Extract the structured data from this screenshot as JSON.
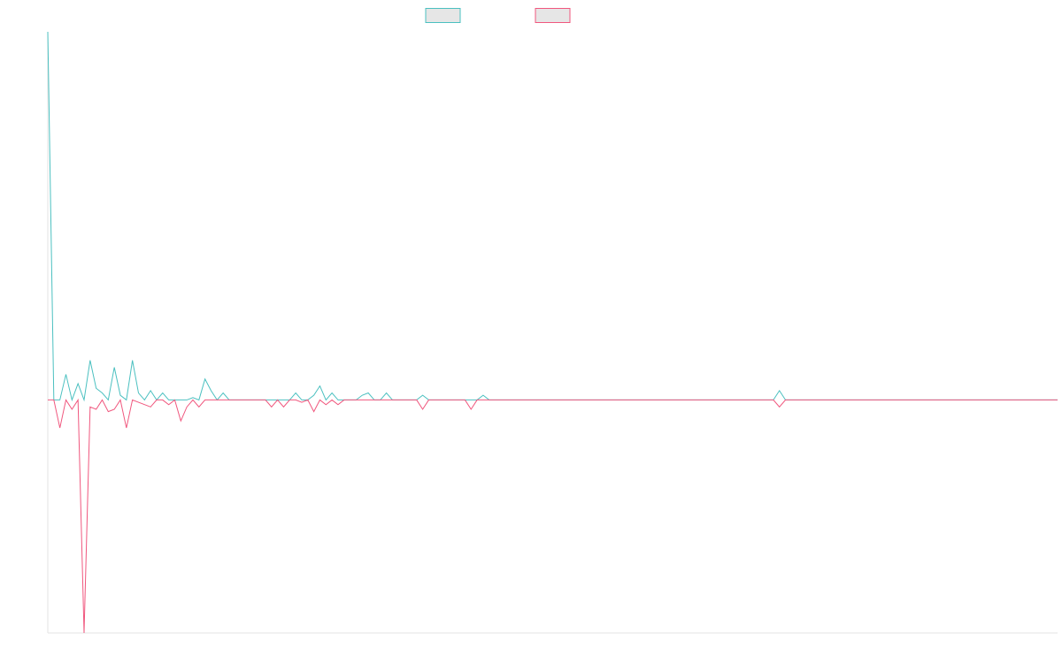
{
  "chart_data": {
    "type": "line",
    "title": "",
    "xlabel": "",
    "ylabel": "",
    "grid": false,
    "legend": "top-center",
    "x_range": [
      0,
      167
    ],
    "ylim": [
      -1.0,
      1.58
    ],
    "series": [
      {
        "name": "",
        "color": "#4bc0c0",
        "fill": "#e6e6e6",
        "sparse": [
          [
            0,
            1.58
          ],
          [
            1,
            0.0
          ],
          [
            2,
            0.0
          ],
          [
            3,
            0.11
          ],
          [
            4,
            0.0
          ],
          [
            5,
            0.07
          ],
          [
            6,
            0.0
          ],
          [
            7,
            0.17
          ],
          [
            8,
            0.05
          ],
          [
            9,
            0.03
          ],
          [
            10,
            0.0
          ],
          [
            11,
            0.14
          ],
          [
            12,
            0.02
          ],
          [
            13,
            0.0
          ],
          [
            14,
            0.17
          ],
          [
            15,
            0.03
          ],
          [
            16,
            0.0
          ],
          [
            17,
            0.04
          ],
          [
            18,
            0.0
          ],
          [
            19,
            0.03
          ],
          [
            20,
            0.0
          ],
          [
            21,
            0.0
          ],
          [
            22,
            0.0
          ],
          [
            23,
            0.0
          ],
          [
            24,
            0.01
          ],
          [
            25,
            0.0
          ],
          [
            26,
            0.09
          ],
          [
            27,
            0.04
          ],
          [
            28,
            0.0
          ],
          [
            29,
            0.03
          ],
          [
            30,
            0.0
          ],
          [
            31,
            0.0
          ],
          [
            32,
            0.0
          ],
          [
            33,
            0.0
          ],
          [
            34,
            0.0
          ],
          [
            35,
            0.0
          ],
          [
            36,
            0.0
          ],
          [
            37,
            0.0
          ],
          [
            38,
            0.0
          ],
          [
            39,
            0.0
          ],
          [
            40,
            0.0
          ],
          [
            41,
            0.03
          ],
          [
            42,
            0.0
          ],
          [
            43,
            0.0
          ],
          [
            44,
            0.02
          ],
          [
            45,
            0.06
          ],
          [
            46,
            0.0
          ],
          [
            47,
            0.03
          ],
          [
            48,
            0.0
          ],
          [
            49,
            0.0
          ],
          [
            50,
            0.0
          ],
          [
            51,
            0.0
          ],
          [
            52,
            0.02
          ],
          [
            53,
            0.03
          ],
          [
            54,
            0.0
          ],
          [
            55,
            0.0
          ],
          [
            56,
            0.03
          ],
          [
            57,
            0.0
          ],
          [
            58,
            0.0
          ],
          [
            59,
            0.0
          ],
          [
            60,
            0.0
          ],
          [
            61,
            0.0
          ],
          [
            62,
            0.02
          ],
          [
            63,
            0.0
          ],
          [
            64,
            0.0
          ],
          [
            65,
            0.0
          ],
          [
            66,
            0.0
          ],
          [
            67,
            0.0
          ],
          [
            68,
            0.0
          ],
          [
            69,
            0.0
          ],
          [
            70,
            0.0
          ],
          [
            71,
            0.0
          ],
          [
            72,
            0.02
          ],
          [
            73,
            0.0
          ],
          [
            74,
            0.0
          ],
          [
            75,
            0.0
          ],
          [
            76,
            0.0
          ],
          [
            77,
            0.0
          ],
          [
            78,
            0.0
          ],
          [
            79,
            0.0
          ],
          [
            80,
            0.0
          ],
          [
            81,
            0.0
          ],
          [
            82,
            0.0
          ],
          [
            83,
            0.0
          ],
          [
            84,
            0.0
          ],
          [
            85,
            0.0
          ],
          [
            86,
            0.0
          ],
          [
            87,
            0.0
          ],
          [
            88,
            0.0
          ],
          [
            89,
            0.0
          ],
          [
            90,
            0.0
          ],
          [
            91,
            0.0
          ],
          [
            92,
            0.0
          ],
          [
            93,
            0.0
          ],
          [
            94,
            0.0
          ],
          [
            95,
            0.0
          ],
          [
            96,
            0.0
          ],
          [
            97,
            0.0
          ],
          [
            98,
            0.0
          ],
          [
            99,
            0.0
          ],
          [
            100,
            0.0
          ],
          [
            101,
            0.0
          ],
          [
            102,
            0.0
          ],
          [
            103,
            0.0
          ],
          [
            104,
            0.0
          ],
          [
            105,
            0.0
          ],
          [
            106,
            0.0
          ],
          [
            107,
            0.0
          ],
          [
            108,
            0.0
          ],
          [
            109,
            0.0
          ],
          [
            110,
            0.0
          ],
          [
            111,
            0.0
          ],
          [
            112,
            0.0
          ],
          [
            113,
            0.0
          ],
          [
            114,
            0.0
          ],
          [
            115,
            0.0
          ],
          [
            116,
            0.0
          ],
          [
            117,
            0.0
          ],
          [
            118,
            0.0
          ],
          [
            119,
            0.0
          ],
          [
            120,
            0.0
          ],
          [
            121,
            0.04
          ],
          [
            122,
            0.0
          ],
          [
            123,
            0.0
          ],
          [
            124,
            0.0
          ],
          [
            125,
            0.0
          ],
          [
            126,
            0.0
          ],
          [
            127,
            0.0
          ],
          [
            128,
            0.0
          ],
          [
            129,
            0.0
          ],
          [
            130,
            0.0
          ],
          [
            131,
            0.0
          ],
          [
            132,
            0.0
          ],
          [
            133,
            0.0
          ],
          [
            134,
            0.0
          ],
          [
            135,
            0.0
          ],
          [
            136,
            0.0
          ],
          [
            137,
            0.0
          ],
          [
            138,
            0.0
          ],
          [
            139,
            0.0
          ],
          [
            140,
            0.0
          ],
          [
            141,
            0.0
          ],
          [
            142,
            0.0
          ],
          [
            143,
            0.0
          ],
          [
            144,
            0.0
          ],
          [
            145,
            0.0
          ],
          [
            146,
            0.0
          ],
          [
            147,
            0.0
          ],
          [
            148,
            0.0
          ],
          [
            149,
            0.0
          ],
          [
            150,
            0.0
          ],
          [
            151,
            0.0
          ],
          [
            152,
            0.0
          ],
          [
            153,
            0.0
          ],
          [
            154,
            0.0
          ],
          [
            155,
            0.0
          ],
          [
            156,
            0.0
          ],
          [
            157,
            0.0
          ],
          [
            158,
            0.0
          ],
          [
            159,
            0.0
          ],
          [
            160,
            0.0
          ],
          [
            161,
            0.0
          ],
          [
            162,
            0.0
          ],
          [
            163,
            0.0
          ],
          [
            164,
            0.0
          ],
          [
            165,
            0.0
          ],
          [
            166,
            0.0
          ],
          [
            167,
            0.0
          ]
        ]
      },
      {
        "name": "",
        "color": "#f0577e",
        "fill": "#e6e6e6",
        "sparse": [
          [
            0,
            0.0
          ],
          [
            1,
            0.0
          ],
          [
            2,
            -0.12
          ],
          [
            3,
            0.0
          ],
          [
            4,
            -0.04
          ],
          [
            5,
            0.0
          ],
          [
            6,
            -1.0
          ],
          [
            7,
            -0.03
          ],
          [
            8,
            -0.04
          ],
          [
            9,
            0.0
          ],
          [
            10,
            -0.05
          ],
          [
            11,
            -0.04
          ],
          [
            12,
            0.0
          ],
          [
            13,
            -0.12
          ],
          [
            14,
            0.0
          ],
          [
            15,
            -0.01
          ],
          [
            16,
            -0.02
          ],
          [
            17,
            -0.03
          ],
          [
            18,
            0.0
          ],
          [
            19,
            0.0
          ],
          [
            20,
            -0.02
          ],
          [
            21,
            0.0
          ],
          [
            22,
            -0.09
          ],
          [
            23,
            -0.03
          ],
          [
            24,
            0.0
          ],
          [
            25,
            -0.03
          ],
          [
            26,
            0.0
          ],
          [
            27,
            0.0
          ],
          [
            28,
            0.0
          ],
          [
            29,
            0.0
          ],
          [
            30,
            0.0
          ],
          [
            31,
            0.0
          ],
          [
            32,
            0.0
          ],
          [
            33,
            0.0
          ],
          [
            34,
            0.0
          ],
          [
            35,
            0.0
          ],
          [
            36,
            0.0
          ],
          [
            37,
            -0.03
          ],
          [
            38,
            0.0
          ],
          [
            39,
            -0.03
          ],
          [
            40,
            0.0
          ],
          [
            41,
            0.0
          ],
          [
            42,
            -0.01
          ],
          [
            43,
            0.0
          ],
          [
            44,
            -0.05
          ],
          [
            45,
            0.0
          ],
          [
            46,
            -0.02
          ],
          [
            47,
            0.0
          ],
          [
            48,
            -0.02
          ],
          [
            49,
            0.0
          ],
          [
            50,
            0.0
          ],
          [
            51,
            0.0
          ],
          [
            52,
            0.0
          ],
          [
            53,
            0.0
          ],
          [
            54,
            0.0
          ],
          [
            55,
            0.0
          ],
          [
            56,
            0.0
          ],
          [
            57,
            0.0
          ],
          [
            58,
            0.0
          ],
          [
            59,
            0.0
          ],
          [
            60,
            0.0
          ],
          [
            61,
            0.0
          ],
          [
            62,
            -0.04
          ],
          [
            63,
            0.0
          ],
          [
            64,
            0.0
          ],
          [
            65,
            0.0
          ],
          [
            66,
            0.0
          ],
          [
            67,
            0.0
          ],
          [
            68,
            0.0
          ],
          [
            69,
            0.0
          ],
          [
            70,
            -0.04
          ],
          [
            71,
            0.0
          ],
          [
            72,
            0.0
          ],
          [
            73,
            0.0
          ],
          [
            74,
            0.0
          ],
          [
            75,
            0.0
          ],
          [
            76,
            0.0
          ],
          [
            77,
            0.0
          ],
          [
            78,
            0.0
          ],
          [
            79,
            0.0
          ],
          [
            80,
            0.0
          ],
          [
            81,
            0.0
          ],
          [
            82,
            0.0
          ],
          [
            83,
            0.0
          ],
          [
            84,
            0.0
          ],
          [
            85,
            0.0
          ],
          [
            86,
            0.0
          ],
          [
            87,
            0.0
          ],
          [
            88,
            0.0
          ],
          [
            89,
            0.0
          ],
          [
            90,
            0.0
          ],
          [
            91,
            0.0
          ],
          [
            92,
            0.0
          ],
          [
            93,
            0.0
          ],
          [
            94,
            0.0
          ],
          [
            95,
            0.0
          ],
          [
            96,
            0.0
          ],
          [
            97,
            0.0
          ],
          [
            98,
            0.0
          ],
          [
            99,
            0.0
          ],
          [
            100,
            0.0
          ],
          [
            101,
            0.0
          ],
          [
            102,
            0.0
          ],
          [
            103,
            0.0
          ],
          [
            104,
            0.0
          ],
          [
            105,
            0.0
          ],
          [
            106,
            0.0
          ],
          [
            107,
            0.0
          ],
          [
            108,
            0.0
          ],
          [
            109,
            0.0
          ],
          [
            110,
            0.0
          ],
          [
            111,
            0.0
          ],
          [
            112,
            0.0
          ],
          [
            113,
            0.0
          ],
          [
            114,
            0.0
          ],
          [
            115,
            0.0
          ],
          [
            116,
            0.0
          ],
          [
            117,
            0.0
          ],
          [
            118,
            0.0
          ],
          [
            119,
            0.0
          ],
          [
            120,
            0.0
          ],
          [
            121,
            -0.03
          ],
          [
            122,
            0.0
          ],
          [
            123,
            0.0
          ],
          [
            124,
            0.0
          ],
          [
            125,
            0.0
          ],
          [
            126,
            0.0
          ],
          [
            127,
            0.0
          ],
          [
            128,
            0.0
          ],
          [
            129,
            0.0
          ],
          [
            130,
            0.0
          ],
          [
            131,
            0.0
          ],
          [
            132,
            0.0
          ],
          [
            133,
            0.0
          ],
          [
            134,
            0.0
          ],
          [
            135,
            0.0
          ],
          [
            136,
            0.0
          ],
          [
            137,
            0.0
          ],
          [
            138,
            0.0
          ],
          [
            139,
            0.0
          ],
          [
            140,
            0.0
          ],
          [
            141,
            0.0
          ],
          [
            142,
            0.0
          ],
          [
            143,
            0.0
          ],
          [
            144,
            0.0
          ],
          [
            145,
            0.0
          ],
          [
            146,
            0.0
          ],
          [
            147,
            0.0
          ],
          [
            148,
            0.0
          ],
          [
            149,
            0.0
          ],
          [
            150,
            0.0
          ],
          [
            151,
            0.0
          ],
          [
            152,
            0.0
          ],
          [
            153,
            0.0
          ],
          [
            154,
            0.0
          ],
          [
            155,
            0.0
          ],
          [
            156,
            0.0
          ],
          [
            157,
            0.0
          ],
          [
            158,
            0.0
          ],
          [
            159,
            0.0
          ],
          [
            160,
            0.0
          ],
          [
            161,
            0.0
          ],
          [
            162,
            0.0
          ],
          [
            163,
            0.0
          ],
          [
            164,
            0.0
          ],
          [
            165,
            0.0
          ],
          [
            166,
            0.0
          ],
          [
            167,
            0.0
          ]
        ]
      }
    ]
  }
}
